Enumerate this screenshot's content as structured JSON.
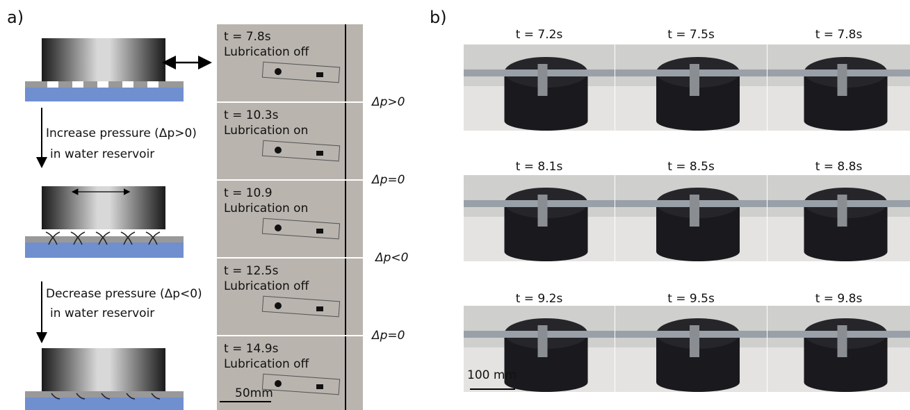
{
  "panel_a": {
    "label": "a)",
    "steps": [
      {
        "line1": "Increase pressure (Δp>0)",
        "line2": "in water reservoir"
      },
      {
        "line1": "Decrease pressure (Δp<0)",
        "line2": "in water reservoir"
      }
    ],
    "frames": [
      {
        "time": "t = 7.8s",
        "state": "Lubrication off"
      },
      {
        "time": "t = 10.3s",
        "state": "Lubrication on"
      },
      {
        "time": "t = 10.9",
        "state": "Lubrication on"
      },
      {
        "time": "t = 12.5s",
        "state": "Lubrication off"
      },
      {
        "time": "t = 14.9s",
        "state": "Lubrication off"
      }
    ],
    "pressure_labels": [
      "Δp>0",
      "Δp=0",
      "Δp<0",
      "Δp=0"
    ],
    "scale_bar": "50mm"
  },
  "panel_b": {
    "label": "b)",
    "frames": [
      "t = 7.2s",
      "t = 7.5s",
      "t = 7.8s",
      "t = 8.1s",
      "t = 8.5s",
      "t = 8.8s",
      "t = 9.2s",
      "t = 9.5s",
      "t = 9.8s"
    ],
    "scale_bar": "100 mm"
  }
}
